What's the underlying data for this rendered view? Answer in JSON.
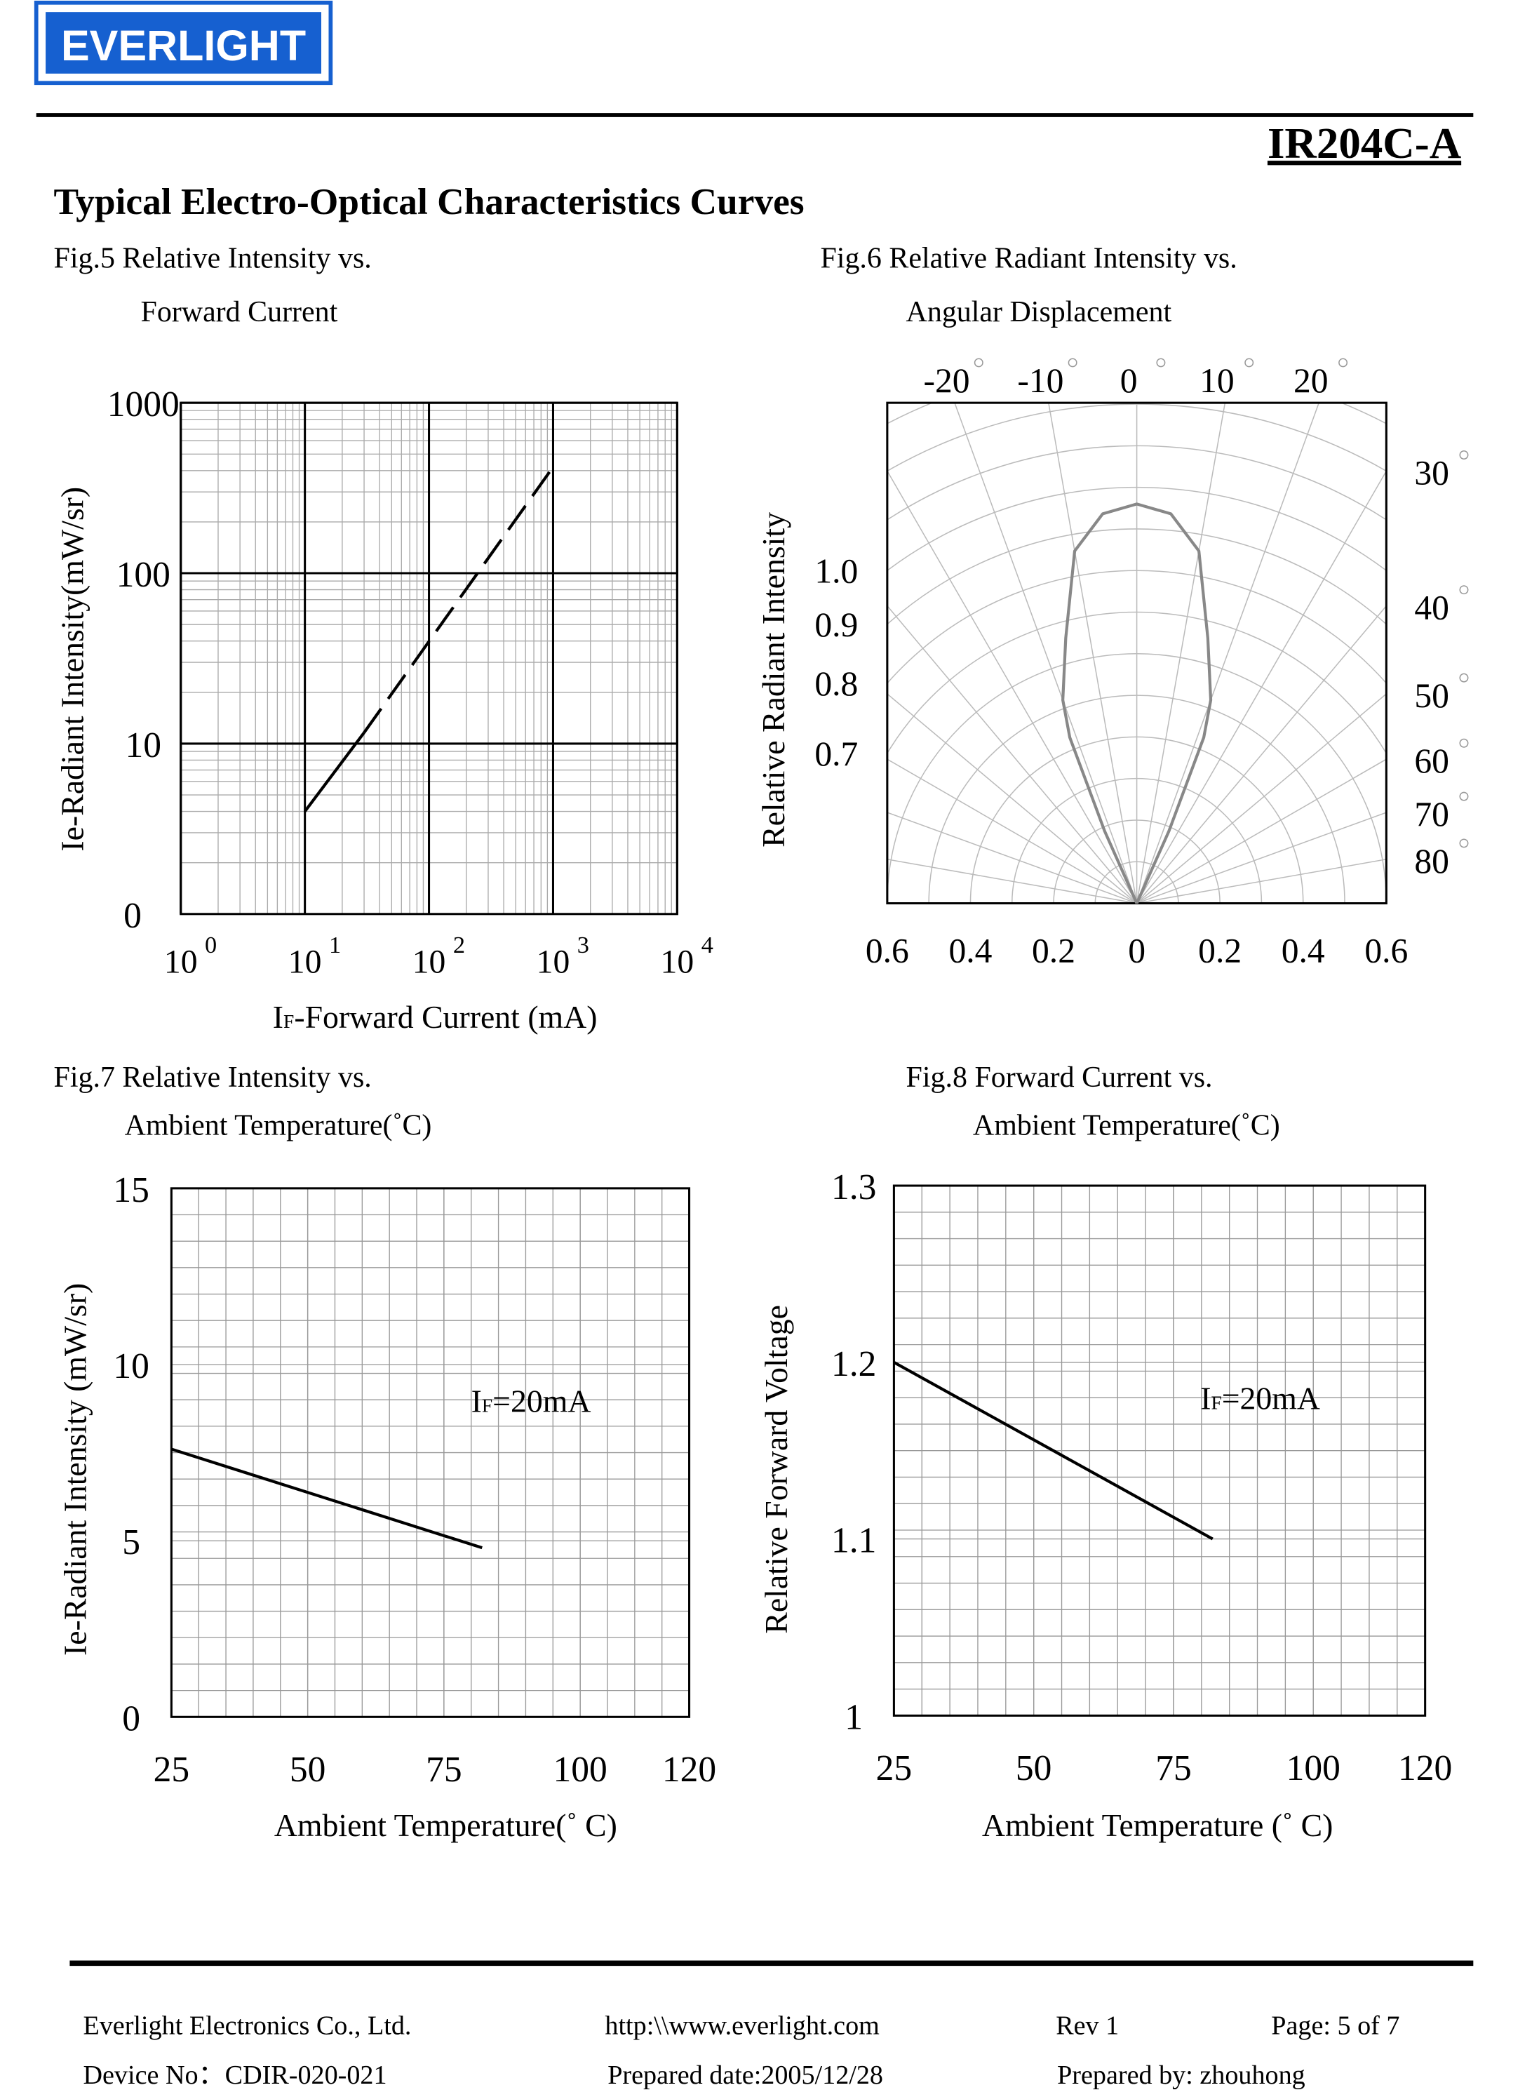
{
  "header": {
    "logo": "EVERLIGHT",
    "part_number": "IR204C-A",
    "heading": "Typical Electro-Optical Characteristics Curves"
  },
  "chart_data": [
    {
      "type": "line",
      "title": [
        "Fig.5 Relative Intensity vs.",
        "Forward Current"
      ],
      "x_label": {
        "main": "I",
        "sub": "F",
        "tail": "-Forward Current (mA)"
      },
      "y_label": "Ie-Radiant Intensity(mW/sr)",
      "xscale": "log",
      "yscale": "log",
      "xlim": [
        1,
        10000
      ],
      "ylim": [
        1,
        1000
      ],
      "xticks": [
        {
          "value": 1,
          "label": "10",
          "power": "0"
        },
        {
          "value": 10,
          "label": "10",
          "power": "1"
        },
        {
          "value": 100,
          "label": "10",
          "power": "2"
        },
        {
          "value": 1000,
          "label": "10",
          "power": "3"
        },
        {
          "value": 10000,
          "label": "10",
          "power": "4"
        }
      ],
      "yticks": [
        10,
        100,
        1000
      ],
      "y_origin_label": "0",
      "grid": true,
      "series": [
        {
          "style": "solid",
          "color": "#000000",
          "x": [
            10,
            30
          ],
          "values": [
            4,
            11.6
          ]
        },
        {
          "style": "dashed",
          "color": "#000000",
          "x": [
            30,
            1000
          ],
          "values": [
            11.6,
            420
          ]
        }
      ]
    },
    {
      "type": "polar",
      "title": [
        "Fig.6 Relative Radiant Intensity vs.",
        "Angular Displacement"
      ],
      "y_label": "Relative Radiant Intensity",
      "xlim": [
        -0.6,
        0.6
      ],
      "xticks": [
        {
          "value": -0.6,
          "label": "0.6"
        },
        {
          "value": -0.4,
          "label": "0.4"
        },
        {
          "value": -0.2,
          "label": "0.2"
        },
        0,
        0.2,
        0.4,
        0.6
      ],
      "angle_ticks": [
        -20,
        -10,
        0,
        10,
        20,
        30,
        40,
        50,
        60,
        70,
        80
      ],
      "rticks": [
        {
          "value": 1,
          "label": "1.0"
        },
        0.9,
        0.8,
        0.7
      ],
      "angles": [
        -25,
        -24,
        -22,
        -20,
        -15,
        -10,
        -5,
        0,
        5,
        10,
        15,
        20,
        22,
        24,
        25
      ],
      "values": [
        0,
        0.19,
        0.43,
        0.52,
        0.66,
        0.86,
        0.94,
        0.96,
        0.94,
        0.86,
        0.66,
        0.52,
        0.43,
        0.19,
        0
      ],
      "color": "#888888"
    },
    {
      "type": "line",
      "title": [
        "Fig.7 Relative Intensity vs.",
        "Ambient Temperature(˚C)"
      ],
      "x_label": {
        "main": "Ambient Temperature(˚ C)"
      },
      "y_label": "Ie-Radiant Intensity (mW/sr)",
      "xlim": [
        25,
        120
      ],
      "ylim": [
        0,
        15
      ],
      "xticks": [
        25,
        50,
        75,
        100,
        120
      ],
      "yticks": [
        0,
        5,
        10,
        15
      ],
      "grid": true,
      "annotation": {
        "main": "I",
        "sub": "F",
        "tail": "=20mA"
      },
      "series": [
        {
          "style": "solid",
          "color": "#000000",
          "x": [
            25,
            82
          ],
          "values": [
            7.6,
            4.8
          ]
        }
      ]
    },
    {
      "type": "line",
      "title": [
        "Fig.8 Forward Current vs.",
        "Ambient Temperature(˚C)"
      ],
      "x_label": {
        "main": "Ambient Temperature (˚ C)"
      },
      "y_label": "Relative Forward Voltage",
      "xlim": [
        25,
        120
      ],
      "ylim": [
        1,
        1.3
      ],
      "xticks": [
        25,
        50,
        75,
        100,
        120
      ],
      "yticks": [
        1,
        1.1,
        1.2,
        1.3
      ],
      "grid": true,
      "annotation": {
        "main": "I",
        "sub": "F",
        "tail": "=20mA"
      },
      "series": [
        {
          "style": "solid",
          "color": "#000000",
          "x": [
            25,
            82
          ],
          "values": [
            1.2,
            1.1
          ]
        }
      ]
    }
  ],
  "footer": {
    "company": "Everlight Electronics Co., Ltd.",
    "url": "http:\\\\www.everlight.com",
    "rev": "Rev 1",
    "page": "Page: 5 of 7",
    "device_no": "Device No：CDIR-020-021",
    "prepared_date": "Prepared date:2005/12/28",
    "prepared_by": "Prepared by: zhouhong"
  }
}
